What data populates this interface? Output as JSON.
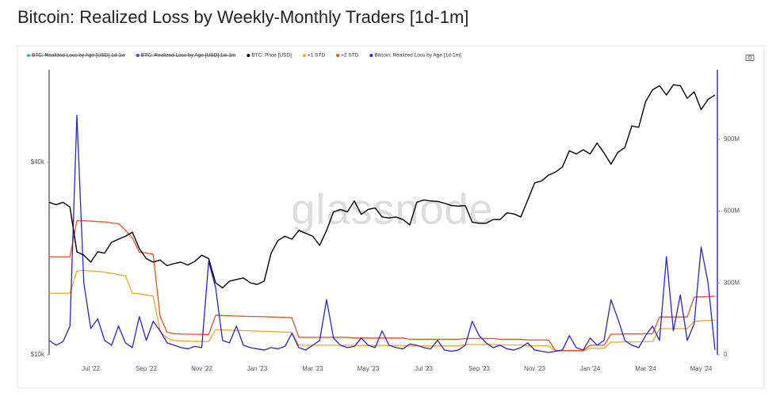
{
  "chart_data": {
    "type": "line",
    "title": "Bitcoin: Realized Loss by Weekly-Monthly Traders [1d-1m]",
    "watermark": "glassnode",
    "legend": "top",
    "ylog": true,
    "legend_hidden": [
      {
        "name": "BTC: Realized Loss by Age [USD] 1d-1w",
        "color": "#2fd0c0"
      },
      {
        "name": "BTC: Realized Loss by Age [USD] 1w-1m",
        "color": "#4646d6"
      }
    ],
    "categories": [
      null,
      null,
      null,
      null,
      null,
      null,
      "Jul '22",
      null,
      null,
      null,
      null,
      null,
      null,
      null,
      "Sep '22",
      null,
      null,
      null,
      null,
      null,
      null,
      null,
      "Nov '22",
      null,
      null,
      null,
      null,
      null,
      null,
      null,
      "Jan '23",
      null,
      null,
      null,
      null,
      null,
      null,
      null,
      "Mar '23",
      null,
      null,
      null,
      null,
      null,
      null,
      null,
      "May '23",
      null,
      null,
      null,
      null,
      null,
      null,
      null,
      "Jul '23",
      null,
      null,
      null,
      null,
      null,
      null,
      null,
      "Sep '23",
      null,
      null,
      null,
      null,
      null,
      null,
      null,
      "Nov '23",
      null,
      null,
      null,
      null,
      null,
      null,
      null,
      "Jan '24",
      null,
      null,
      null,
      null,
      null,
      null,
      null,
      "Mar '24",
      null,
      null,
      null,
      null,
      null,
      null,
      null,
      "May '24",
      null,
      null
    ],
    "ylim": [
      10000,
      78000
    ],
    "yticks": [
      {
        "value": 10000,
        "label": "$10k"
      },
      {
        "value": 40000,
        "label": "$40k"
      }
    ],
    "y2lim": [
      0,
      1190000000
    ],
    "y2ticks": [
      0,
      {
        "value": 300000000.0,
        "label": "300M"
      },
      {
        "value": 600000000.0,
        "label": "600M"
      },
      {
        "value": 900000000.0,
        "label": "900M"
      }
    ],
    "series": [
      {
        "name": "+1 STD",
        "color": "#f5a623",
        "axis": "y2",
        "values": [
          257000000.0,
          257000000.0,
          257000000.0,
          257000000.0,
          350000000.0,
          352000000.0,
          350000000.0,
          348000000.0,
          345000000.0,
          340000000.0,
          335000000.0,
          330000000.0,
          257000000.0,
          255000000.0,
          250000000.0,
          245000000.0,
          99000000.0,
          70000000.0,
          60000000.0,
          58000000.0,
          57000000.0,
          56000000.0,
          56000000.0,
          55000000.0,
          105000000.0,
          104000000.0,
          103000000.0,
          102000000.0,
          101000000.0,
          100000000.0,
          99000000.0,
          98000000.0,
          97000000.0,
          96000000.0,
          95000000.0,
          94000000.0,
          40000000.0,
          40000000.0,
          40000000.0,
          40000000.0,
          40000000.0,
          40000000.0,
          40000000.0,
          40000000.0,
          39000000.0,
          39000000.0,
          39000000.0,
          39000000.0,
          39000000.0,
          39000000.0,
          39000000.0,
          39000000.0,
          37000000.0,
          37000000.0,
          37000000.0,
          37000000.0,
          37000000.0,
          37000000.0,
          37000000.0,
          37000000.0,
          43000000.0,
          43000000.0,
          43000000.0,
          43000000.0,
          43000000.0,
          41000000.0,
          41000000.0,
          41000000.0,
          41000000.0,
          38000000.0,
          38000000.0,
          38000000.0,
          38000000.0,
          16000000.0,
          16000000.0,
          16000000.0,
          16000000.0,
          16000000.0,
          27000000.0,
          27000000.0,
          27000000.0,
          53000000.0,
          53000000.0,
          54000000.0,
          54000000.0,
          54000000.0,
          55000000.0,
          55000000.0,
          109000000.0,
          109000000.0,
          109000000.0,
          109000000.0,
          109000000.0,
          140000000.0,
          142000000.0,
          143000000.0,
          145000000.0
        ]
      },
      {
        "name": "+2 STD",
        "color": "#ee4f1b",
        "axis": "y2",
        "values": [
          409000000.0,
          409000000.0,
          409000000.0,
          409000000.0,
          560000000.0,
          560000000.0,
          558000000.0,
          556000000.0,
          555000000.0,
          550000000.0,
          548000000.0,
          520000000.0,
          488000000.0,
          429000000.0,
          425000000.0,
          420000000.0,
          160000000.0,
          95000000.0,
          88000000.0,
          87000000.0,
          86000000.0,
          86000000.0,
          85000000.0,
          85000000.0,
          165000000.0,
          164000000.0,
          163000000.0,
          162000000.0,
          161000000.0,
          160000000.0,
          160000000.0,
          159000000.0,
          158000000.0,
          157000000.0,
          156000000.0,
          155000000.0,
          73000000.0,
          73000000.0,
          73000000.0,
          73000000.0,
          73000000.0,
          73000000.0,
          73000000.0,
          73000000.0,
          70000000.0,
          70000000.0,
          70000000.0,
          70000000.0,
          70000000.0,
          70000000.0,
          70000000.0,
          70000000.0,
          65000000.0,
          65000000.0,
          65000000.0,
          65000000.0,
          65000000.0,
          65000000.0,
          65000000.0,
          65000000.0,
          68000000.0,
          68000000.0,
          68000000.0,
          68000000.0,
          68000000.0,
          65000000.0,
          65000000.0,
          65000000.0,
          65000000.0,
          62000000.0,
          62000000.0,
          62000000.0,
          62000000.0,
          18000000.0,
          18000000.0,
          18000000.0,
          18000000.0,
          18000000.0,
          40000000.0,
          40000000.0,
          40000000.0,
          86000000.0,
          86000000.0,
          87000000.0,
          87000000.0,
          87000000.0,
          88000000.0,
          88000000.0,
          158000000.0,
          158000000.0,
          158000000.0,
          158000000.0,
          158000000.0,
          241000000.0,
          242000000.0,
          243000000.0,
          245000000.0
        ]
      },
      {
        "name": "Bitcoin: Realized Loss by Age [1d-1m]",
        "color": "#2424d8",
        "axis": "y2",
        "values": [
          60000000.0,
          40000000.0,
          55000000.0,
          120000000.0,
          1000000000.0,
          300000000.0,
          110000000.0,
          150000000.0,
          60000000.0,
          40000000.0,
          120000000.0,
          50000000.0,
          30000000.0,
          160000000.0,
          60000000.0,
          140000000.0,
          100000000.0,
          50000000.0,
          40000000.0,
          30000000.0,
          25000000.0,
          35000000.0,
          30000000.0,
          390000000.0,
          280000000.0,
          60000000.0,
          50000000.0,
          120000000.0,
          40000000.0,
          30000000.0,
          25000000.0,
          20000000.0,
          30000000.0,
          25000000.0,
          35000000.0,
          90000000.0,
          30000000.0,
          20000000.0,
          40000000.0,
          60000000.0,
          230000000.0,
          70000000.0,
          40000000.0,
          30000000.0,
          35000000.0,
          70000000.0,
          40000000.0,
          30000000.0,
          100000000.0,
          40000000.0,
          30000000.0,
          25000000.0,
          45000000.0,
          40000000.0,
          30000000.0,
          25000000.0,
          60000000.0,
          20000000.0,
          15000000.0,
          20000000.0,
          40000000.0,
          140000000.0,
          80000000.0,
          50000000.0,
          30000000.0,
          40000000.0,
          25000000.0,
          20000000.0,
          30000000.0,
          50000000.0,
          20000000.0,
          15000000.0,
          10000000.0,
          15000000.0,
          20000000.0,
          80000000.0,
          30000000.0,
          20000000.0,
          70000000.0,
          40000000.0,
          60000000.0,
          230000000.0,
          150000000.0,
          60000000.0,
          40000000.0,
          30000000.0,
          80000000.0,
          120000000.0,
          60000000.0,
          410000000.0,
          100000000.0,
          250000000.0,
          60000000.0,
          130000000.0,
          450000000.0,
          300000000.0,
          20000000.0
        ]
      },
      {
        "name": "BTC: Price [USD]",
        "color": "#000000",
        "values": [
          30000,
          29500,
          30000,
          29000,
          21000,
          20500,
          19500,
          21000,
          20800,
          22500,
          23000,
          23500,
          24200,
          21500,
          20000,
          19500,
          19800,
          19000,
          19300,
          19500,
          19100,
          19600,
          20500,
          20000,
          16800,
          16200,
          17000,
          17200,
          17400,
          16800,
          16600,
          17000,
          20800,
          22800,
          23500,
          23000,
          24500,
          24000,
          23500,
          22000,
          24500,
          28000,
          28500,
          28000,
          30300,
          27500,
          28500,
          28800,
          27000,
          26800,
          27000,
          26500,
          25500,
          30000,
          30500,
          30300,
          30200,
          29800,
          29300,
          29200,
          29300,
          26000,
          25800,
          25800,
          26500,
          26500,
          27800,
          27600,
          27000,
          30500,
          34500,
          35000,
          36500,
          37300,
          38700,
          43500,
          42500,
          43800,
          42500,
          46000,
          42800,
          39500,
          43000,
          44500,
          52000,
          51500,
          62000,
          67500,
          69500,
          65000,
          70000,
          69500,
          63500,
          66500,
          58500,
          63000,
          65000
        ]
      }
    ]
  }
}
